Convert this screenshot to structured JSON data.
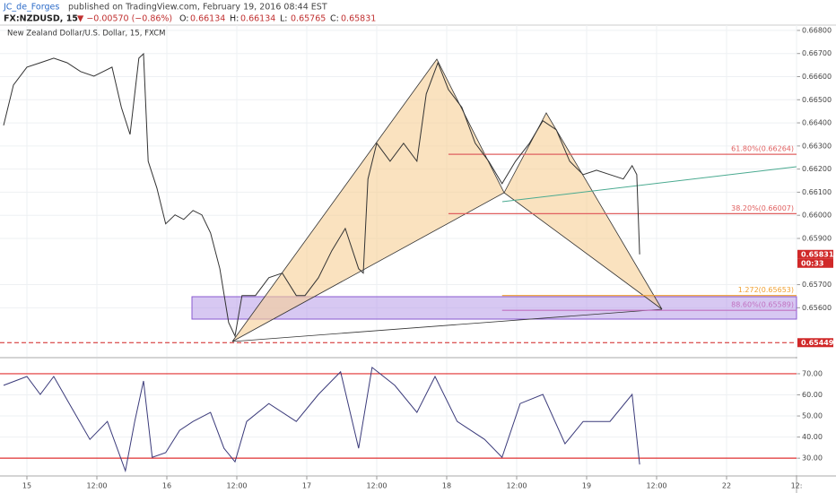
{
  "header": {
    "author": "JC_de_Forges",
    "published": "published on TradingView.com, February 19, 2016 08:44 EST",
    "symbol": "FX:NZDUSD, 15",
    "change": "▼ −0.00570 (−0.86%)",
    "ohlc": [
      [
        "O:",
        "0.66134"
      ],
      [
        "H:",
        "0.66134"
      ],
      [
        "L:",
        "0.65765"
      ],
      [
        "C:",
        "0.65831"
      ]
    ]
  },
  "chart_data": [
    {
      "type": "line",
      "title": "New Zealand Dollar/U.S. Dollar, 15, FXCM",
      "color": "#333333",
      "x": [
        -4,
        -2.3,
        0,
        2.3,
        4.6,
        6.9,
        9.2,
        11.5,
        13.1,
        14.6,
        16.2,
        17.7,
        19.2,
        20,
        20.8,
        22.3,
        23.8,
        25.4,
        26.9,
        28.5,
        30,
        31.5,
        33.1,
        34.6,
        35.7,
        36.9,
        39.2,
        41.5,
        43.8,
        46.2,
        47.7,
        50,
        52.3,
        54.6,
        56.9,
        57.7,
        58.5,
        60,
        62.3,
        64.6,
        66.9,
        68.5,
        70.5,
        72.3,
        74.6,
        76.9,
        79.2,
        81.5,
        83.8,
        86.2,
        88.5,
        90.8,
        93.1,
        95.4,
        97.7,
        100,
        102.3,
        103.8,
        104.6,
        105.1
      ],
      "series": [
        {
          "color": "#333333",
          "values": [
            0.66389,
            0.66564,
            0.66641,
            0.6666,
            0.6668,
            0.6666,
            0.66622,
            0.66602,
            0.66622,
            0.66641,
            0.66467,
            0.6635,
            0.6668,
            0.66699,
            0.66234,
            0.66118,
            0.65963,
            0.66002,
            0.65982,
            0.66021,
            0.66002,
            0.65924,
            0.65769,
            0.65536,
            0.65478,
            0.65653,
            0.65653,
            0.6573,
            0.6575,
            0.65653,
            0.65653,
            0.6573,
            0.65847,
            0.65943,
            0.65769,
            0.6575,
            0.66157,
            0.66312,
            0.66234,
            0.66312,
            0.66234,
            0.66525,
            0.6666,
            0.66544,
            0.66467,
            0.66312,
            0.66234,
            0.66137,
            0.66234,
            0.66312,
            0.66409,
            0.6637,
            0.66234,
            0.66176,
            0.66195,
            0.66176,
            0.66157,
            0.66215,
            0.66176,
            0.65831
          ]
        }
      ],
      "xlim": [
        -4.615,
        132
      ],
      "ylim": [
        0.65388,
        0.66823
      ],
      "xticks": [
        {
          "value": 0,
          "label": "15"
        },
        {
          "value": 12,
          "label": "12:00"
        },
        {
          "value": 24,
          "label": "16"
        },
        {
          "value": 36,
          "label": "12:00"
        },
        {
          "value": 48,
          "label": "17"
        },
        {
          "value": 60,
          "label": "12:00"
        },
        {
          "value": 72,
          "label": "18"
        },
        {
          "value": 84,
          "label": "12:00"
        },
        {
          "value": 96,
          "label": "19"
        },
        {
          "value": 108,
          "label": "12:00"
        },
        {
          "value": 120,
          "label": "22"
        },
        {
          "value": 132,
          "label": "12:"
        }
      ],
      "yticks": [
        {
          "value": 0.668,
          "label": "0.66800"
        },
        {
          "value": 0.667,
          "label": "0.66700"
        },
        {
          "value": 0.666,
          "label": "0.66600"
        },
        {
          "value": 0.665,
          "label": "0.66500"
        },
        {
          "value": 0.664,
          "label": "0.66400"
        },
        {
          "value": 0.663,
          "label": "0.66300"
        },
        {
          "value": 0.662,
          "label": "0.66200"
        },
        {
          "value": 0.661,
          "label": "0.66100"
        },
        {
          "value": 0.66,
          "label": "0.66000"
        },
        {
          "value": 0.659,
          "label": "0.65900"
        },
        {
          "value": 0.657,
          "label": "0.65700"
        },
        {
          "value": 0.656,
          "label": "0.65600"
        }
      ],
      "grid": true,
      "levels": [
        {
          "value": 0.66264,
          "label": "61.80%(0.66264)",
          "color": "#e06060",
          "from": 72.3
        },
        {
          "value": 0.66007,
          "label": "38.20%(0.66007)",
          "color": "#e06060",
          "from": 72.3
        },
        {
          "value": 0.65653,
          "label": "1.272(0.65653)",
          "color": "#f0a030",
          "from": 81.5
        },
        {
          "value": 0.65589,
          "label": "88.60%(0.65589)",
          "color": "#c070c0",
          "from": 81.5
        }
      ],
      "price_tags": [
        {
          "value": 0.65831,
          "label": "0.65831"
        },
        {
          "value": 0.65449,
          "label": "0.65449"
        }
      ],
      "countdown": "00:33"
    },
    {
      "type": "line",
      "color": "#3a3a7a",
      "x": [
        -4,
        0,
        2.3,
        4.6,
        7.7,
        10.8,
        13.8,
        16.9,
        18.5,
        20,
        21.5,
        23.8,
        26.2,
        28.5,
        31.5,
        33.8,
        35.7,
        37.7,
        41.5,
        46.2,
        50,
        53.8,
        56.9,
        59.2,
        63.1,
        66.9,
        70,
        73.8,
        78.5,
        81.5,
        84.6,
        88.5,
        92.3,
        95.4,
        100,
        103.8,
        105.1
      ],
      "series": [
        {
          "color": "#3a3a7a",
          "values": [
            64.5,
            68.7,
            60.2,
            68.7,
            53.8,
            38.9,
            47.4,
            24,
            47.4,
            66.6,
            30.4,
            32.6,
            43.2,
            47.4,
            51.7,
            34.7,
            28.3,
            47.4,
            55.9,
            47.4,
            60.2,
            70.9,
            34.7,
            73,
            64.5,
            51.7,
            68.7,
            47.4,
            38.9,
            30.4,
            55.9,
            60.2,
            36.8,
            47.4,
            47.4,
            60.2,
            27
          ]
        }
      ],
      "xlim": [
        -4.615,
        132
      ],
      "ylim": [
        22,
        77.2
      ],
      "yticks": [
        {
          "value": 70,
          "label": "70.00"
        },
        {
          "value": 60,
          "label": "60.00"
        },
        {
          "value": 50,
          "label": "50.00"
        },
        {
          "value": 40,
          "label": "40.00"
        },
        {
          "value": 30,
          "label": "30.00"
        }
      ],
      "bands": [
        70,
        30
      ]
    }
  ]
}
